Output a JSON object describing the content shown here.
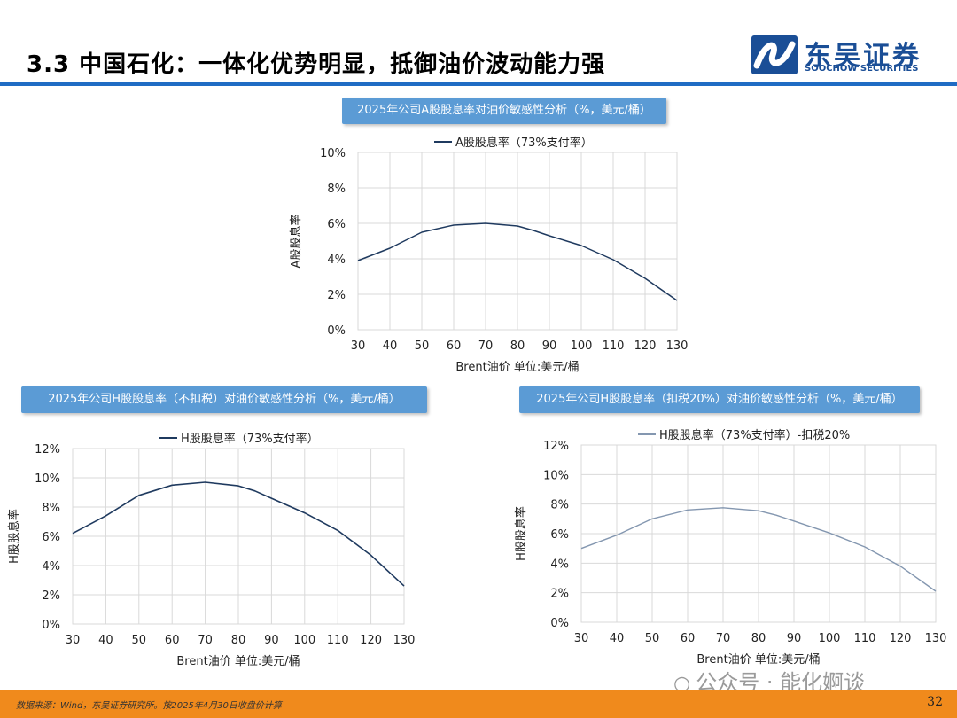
{
  "title": "3.3 中国石化：一体化优势明显，抵御油价波动能力强",
  "logo": {
    "cn": "东吴证券",
    "en": "SOOCHOW SECURITIES",
    "color": "#1a4e96"
  },
  "footer": {
    "source": "数据来源：Wind，东吴证券研究所。按2025年4月30日收盘价计算",
    "page": "32"
  },
  "watermark": {
    "icon": "wechat-icon",
    "text": "公众号 · 能化婀谈"
  },
  "colors": {
    "accent": "#1f6cc4",
    "caption_bg": "#5b9bd5",
    "footer_bg": "#f08a1c",
    "series_dark": "#1f3a5f",
    "series_light": "#8497b0",
    "grid": "#d9d9d9"
  },
  "chart_data": [
    {
      "type": "line",
      "caption": "2025年公司A股股息率对油价敏感性分析（%，美元/桶）",
      "x": [
        30,
        40,
        50,
        60,
        70,
        80,
        85,
        90,
        100,
        110,
        120,
        130
      ],
      "series": [
        {
          "name": "A股股息率（73%支付率）",
          "values": [
            3.9,
            4.6,
            5.5,
            5.9,
            6.0,
            5.85,
            5.6,
            5.3,
            4.75,
            3.95,
            2.9,
            1.65
          ]
        }
      ],
      "xlabel": "Brent油价  单位:美元/桶",
      "ylabel": "A股股息率",
      "xticks": [
        "30",
        "40",
        "50",
        "60",
        "70",
        "80",
        "90",
        "100",
        "110",
        "120",
        "130"
      ],
      "yticks": [
        "0%",
        "2%",
        "4%",
        "6%",
        "8%",
        "10%"
      ],
      "ylim": [
        0,
        10
      ],
      "grid": true,
      "legend": "top"
    },
    {
      "type": "line",
      "caption": "2025年公司H股股息率（不扣税）对油价敏感性分析（%，美元/桶）",
      "x": [
        30,
        40,
        50,
        60,
        70,
        80,
        85,
        90,
        100,
        110,
        120,
        130
      ],
      "series": [
        {
          "name": "H股股息率（73%支付率）",
          "values": [
            6.2,
            7.4,
            8.8,
            9.5,
            9.7,
            9.45,
            9.1,
            8.6,
            7.6,
            6.4,
            4.7,
            2.6
          ]
        }
      ],
      "xlabel": "Brent油价  单位:美元/桶",
      "ylabel": "H股股息率",
      "xticks": [
        "30",
        "40",
        "50",
        "60",
        "70",
        "80",
        "90",
        "100",
        "110",
        "120",
        "130"
      ],
      "yticks": [
        "0%",
        "2%",
        "4%",
        "6%",
        "8%",
        "10%",
        "12%"
      ],
      "ylim": [
        0,
        12
      ],
      "grid": true,
      "legend": "top"
    },
    {
      "type": "line",
      "caption": "2025年公司H股股息率（扣税20%）对油价敏感性分析（%，美元/桶）",
      "x": [
        30,
        40,
        50,
        60,
        70,
        80,
        85,
        90,
        100,
        110,
        120,
        130
      ],
      "series": [
        {
          "name": "H股股息率（73%支付率）-扣税20%",
          "values": [
            5.0,
            5.9,
            7.0,
            7.6,
            7.75,
            7.55,
            7.25,
            6.85,
            6.05,
            5.1,
            3.8,
            2.1
          ]
        }
      ],
      "xlabel": "Brent油价  单位:美元/桶",
      "ylabel": "H股股息率",
      "xticks": [
        "30",
        "40",
        "50",
        "60",
        "70",
        "80",
        "90",
        "100",
        "110",
        "120",
        "130"
      ],
      "yticks": [
        "0%",
        "2%",
        "4%",
        "6%",
        "8%",
        "10%",
        "12%"
      ],
      "ylim": [
        0,
        12
      ],
      "grid": true,
      "legend": "top"
    }
  ]
}
